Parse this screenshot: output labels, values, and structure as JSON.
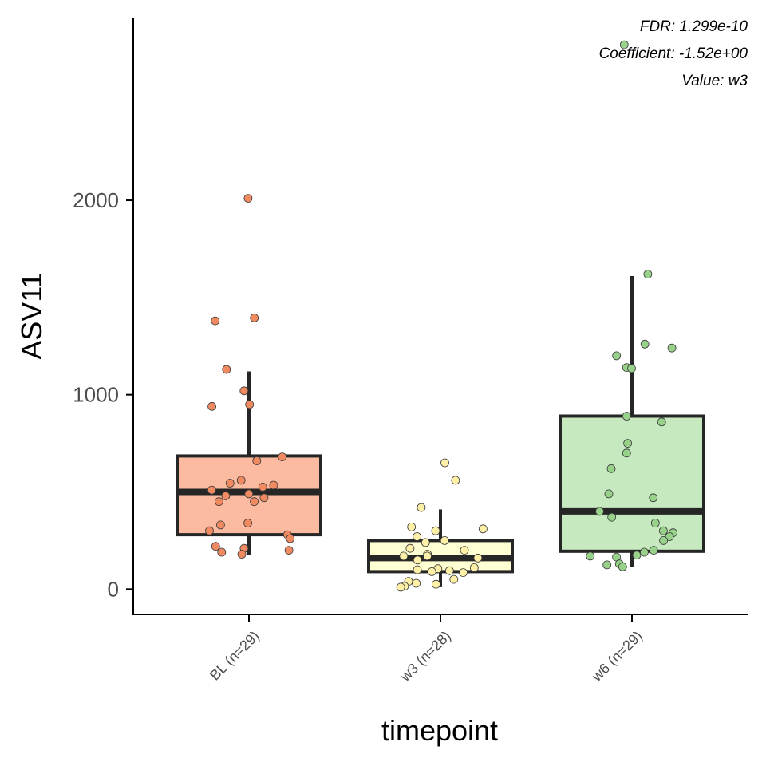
{
  "chart_data": {
    "type": "boxplot",
    "xlabel": "timepoint",
    "ylabel": "ASV11",
    "ylim": [
      -130,
      2940
    ],
    "yticks": [
      0,
      1000,
      2000
    ],
    "grid": false,
    "annotations": [
      "FDR: 1.299e-10",
      "Coefficient: -1.52e+00",
      "Value: w3"
    ],
    "categories": [
      "BL (n=29)",
      "w3 (n=28)",
      "w6 (n=29)"
    ],
    "boxes": [
      {
        "category": "BL (n=29)",
        "color": "#fcbba1",
        "point_color": "#f08a60",
        "q1": 280,
        "median": 500,
        "q3": 685,
        "whisker_low": 175,
        "whisker_high": 1120,
        "points": [
          2010,
          1395,
          1380,
          1130,
          1020,
          950,
          940,
          680,
          660,
          560,
          545,
          535,
          525,
          510,
          490,
          480,
          470,
          450,
          450,
          340,
          330,
          300,
          280,
          260,
          220,
          210,
          200,
          190,
          180
        ]
      },
      {
        "category": "w3 (n=28)",
        "color": "#ffffd4",
        "point_color": "#fff0a8",
        "q1": 90,
        "median": 160,
        "q3": 250,
        "whisker_low": 10,
        "whisker_high": 410,
        "points": [
          650,
          560,
          420,
          320,
          310,
          300,
          270,
          250,
          240,
          210,
          200,
          180,
          170,
          170,
          160,
          150,
          110,
          105,
          100,
          95,
          90,
          85,
          50,
          40,
          30,
          25,
          15,
          10
        ]
      },
      {
        "category": "w6 (n=29)",
        "color": "#c7e9c0",
        "point_color": "#98d18a",
        "q1": 195,
        "median": 400,
        "q3": 890,
        "whisker_low": 115,
        "whisker_high": 1610,
        "points": [
          2800,
          1620,
          1260,
          1240,
          1200,
          1140,
          1135,
          890,
          860,
          750,
          700,
          620,
          490,
          470,
          400,
          370,
          340,
          300,
          290,
          270,
          250,
          200,
          190,
          175,
          170,
          165,
          130,
          125,
          115
        ]
      }
    ]
  }
}
